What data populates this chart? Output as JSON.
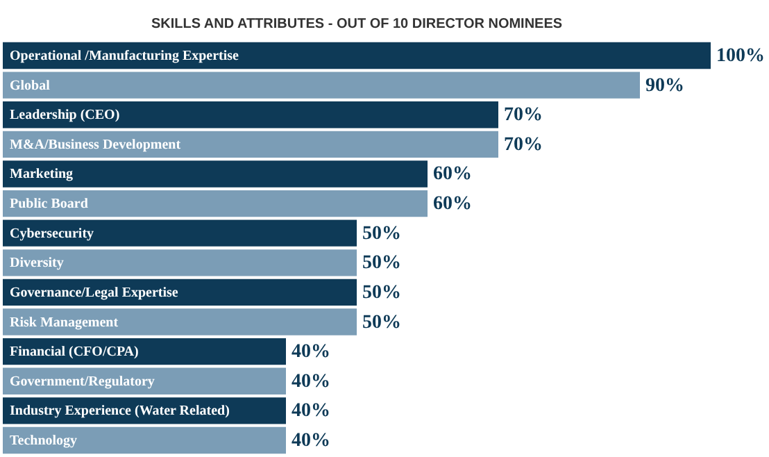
{
  "chart_data": {
    "type": "bar",
    "orientation": "horizontal",
    "title": "SKILLS AND ATTRIBUTES - OUT OF 10 DIRECTOR NOMINEES",
    "categories": [
      "Operational /Manufacturing Expertise",
      "Global",
      "Leadership (CEO)",
      "M&A/Business Development",
      "Marketing",
      "Public Board",
      "Cybersecurity",
      "Diversity",
      "Governance/Legal Expertise",
      "Risk Management",
      "Financial (CFO/CPA)",
      "Government/Regulatory",
      "Industry Experience (Water Related)",
      "Technology"
    ],
    "values": [
      100,
      90,
      70,
      70,
      60,
      60,
      50,
      50,
      50,
      50,
      40,
      40,
      40,
      40
    ],
    "colors": [
      "#0e3a57",
      "#7b9db6",
      "#0e3a57",
      "#7b9db6",
      "#0e3a57",
      "#7b9db6",
      "#0e3a57",
      "#7b9db6",
      "#0e3a57",
      "#7b9db6",
      "#0e3a57",
      "#7b9db6",
      "#0e3a57",
      "#7b9db6"
    ],
    "value_labels": [
      "100%",
      "90%",
      "70%",
      "70%",
      "60%",
      "60%",
      "50%",
      "50%",
      "50%",
      "50%",
      "40%",
      "40%",
      "40%",
      "40%"
    ]
  }
}
